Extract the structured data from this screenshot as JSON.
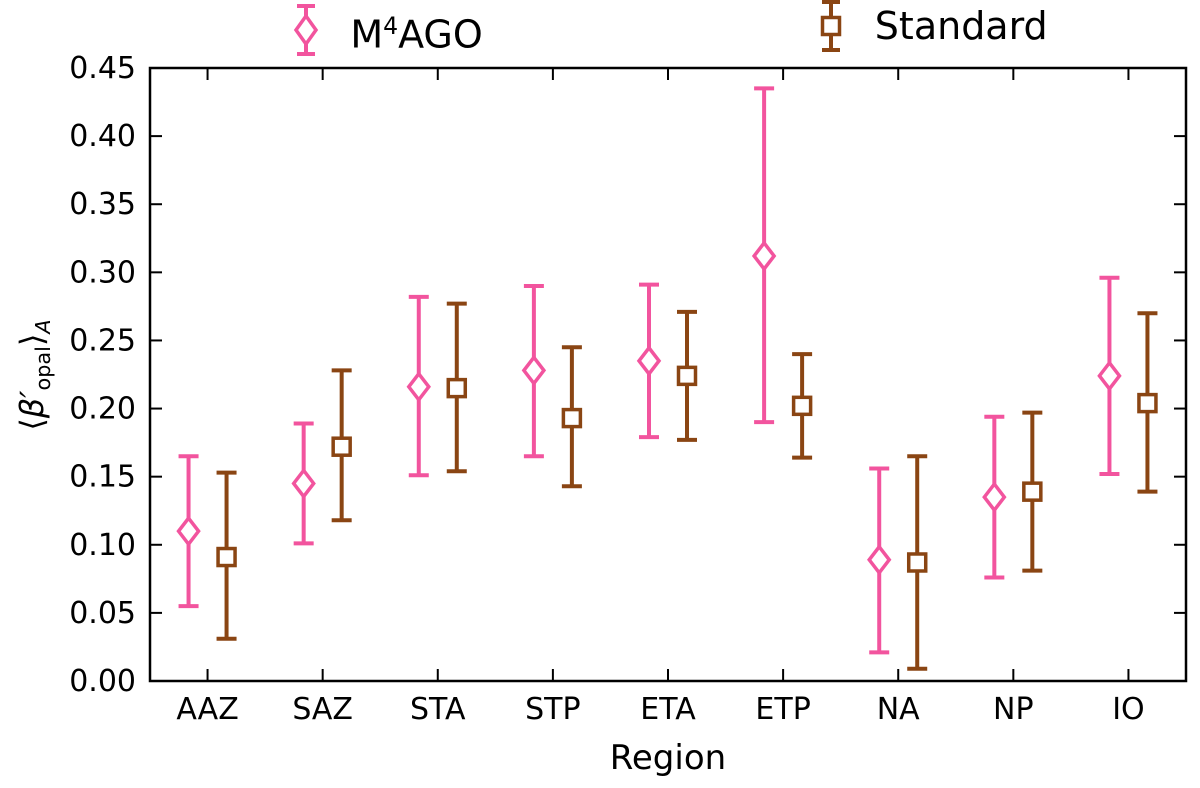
{
  "figure": {
    "background": "#ffffff",
    "axis_color": "#000000"
  },
  "chart_data": {
    "type": "errorbar",
    "title": "",
    "xlabel": "Region",
    "ylabel": "⟨β′opal⟩A",
    "ylabel_parts": {
      "open": "⟨",
      "symbol": "β′",
      "sub": "opal",
      "close": "⟩",
      "outer_sub": "A"
    },
    "categories": [
      "AAZ",
      "SAZ",
      "STA",
      "STP",
      "ETA",
      "ETP",
      "NA",
      "NP",
      "IO"
    ],
    "ylim": [
      0.0,
      0.45
    ],
    "yticks": [
      0.0,
      0.05,
      0.1,
      0.15,
      0.2,
      0.25,
      0.3,
      0.35,
      0.4,
      0.45
    ],
    "grid": false,
    "legend_position": "top-outside",
    "series": [
      {
        "name": "M⁴AGO",
        "name_parts": {
          "base": "M",
          "sup": "4",
          "rest": "AGO"
        },
        "marker": "diamond",
        "color": "#f2549e",
        "values": [
          0.11,
          0.145,
          0.216,
          0.228,
          0.235,
          0.312,
          0.089,
          0.135,
          0.224
        ],
        "lo": [
          0.055,
          0.101,
          0.151,
          0.165,
          0.179,
          0.19,
          0.021,
          0.076,
          0.152
        ],
        "hi": [
          0.165,
          0.189,
          0.282,
          0.29,
          0.291,
          0.435,
          0.156,
          0.194,
          0.296
        ]
      },
      {
        "name": "Standard",
        "marker": "square",
        "color": "#8a4513",
        "values": [
          0.091,
          0.172,
          0.215,
          0.193,
          0.224,
          0.202,
          0.087,
          0.139,
          0.204
        ],
        "lo": [
          0.031,
          0.118,
          0.154,
          0.143,
          0.177,
          0.164,
          0.009,
          0.081,
          0.139
        ],
        "hi": [
          0.153,
          0.228,
          0.277,
          0.245,
          0.271,
          0.24,
          0.165,
          0.197,
          0.27
        ]
      }
    ]
  }
}
